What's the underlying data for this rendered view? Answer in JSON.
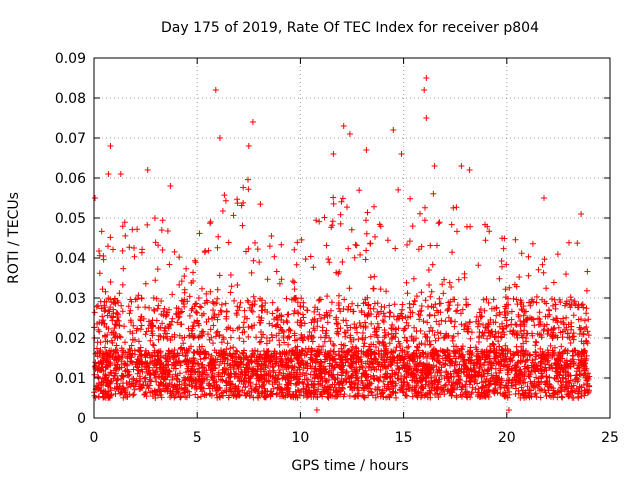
{
  "chart_data": {
    "type": "scatter",
    "title": "Day 175 of 2019, Rate Of TEC Index for receiver p804",
    "xlabel": "GPS time / hours",
    "ylabel": "ROTI / TECUs",
    "xlim": [
      0,
      25
    ],
    "ylim": [
      0,
      0.09
    ],
    "x_ticks": [
      0,
      5,
      10,
      15,
      20,
      25
    ],
    "x_tick_labels": [
      "0",
      "5",
      "10",
      "15",
      "20",
      "25"
    ],
    "y_ticks": [
      0,
      0.01,
      0.02,
      0.03,
      0.04,
      0.05,
      0.06,
      0.07,
      0.08,
      0.09
    ],
    "y_tick_labels": [
      "0",
      "0.01",
      "0.02",
      "0.03",
      "0.04",
      "0.05",
      "0.06",
      "0.07",
      "0.08",
      "0.09"
    ],
    "grid": true,
    "marker": "+",
    "color": "#ff0000",
    "series": [
      {
        "name": "ROTI",
        "note": "Dense scatter of ROTI values over 0-24 h; baseline ~0.005-0.015, bursts up to ~0.085",
        "highlight_points": [
          {
            "x": 0.05,
            "y": 0.055
          },
          {
            "x": 0.8,
            "y": 0.068
          },
          {
            "x": 0.7,
            "y": 0.061
          },
          {
            "x": 1.3,
            "y": 0.061
          },
          {
            "x": 2.6,
            "y": 0.062
          },
          {
            "x": 3.7,
            "y": 0.058
          },
          {
            "x": 5.9,
            "y": 0.082
          },
          {
            "x": 6.1,
            "y": 0.07
          },
          {
            "x": 7.7,
            "y": 0.074
          },
          {
            "x": 7.5,
            "y": 0.068
          },
          {
            "x": 11.6,
            "y": 0.066
          },
          {
            "x": 12.1,
            "y": 0.073
          },
          {
            "x": 12.4,
            "y": 0.071
          },
          {
            "x": 13.2,
            "y": 0.067
          },
          {
            "x": 14.5,
            "y": 0.072
          },
          {
            "x": 14.9,
            "y": 0.066
          },
          {
            "x": 16.1,
            "y": 0.085
          },
          {
            "x": 16.0,
            "y": 0.082
          },
          {
            "x": 16.1,
            "y": 0.075
          },
          {
            "x": 16.5,
            "y": 0.063
          },
          {
            "x": 17.8,
            "y": 0.063
          },
          {
            "x": 18.2,
            "y": 0.062
          },
          {
            "x": 21.8,
            "y": 0.055
          },
          {
            "x": 23.6,
            "y": 0.051
          },
          {
            "x": 10.8,
            "y": 0.002
          },
          {
            "x": 20.1,
            "y": 0.002
          }
        ]
      }
    ]
  }
}
